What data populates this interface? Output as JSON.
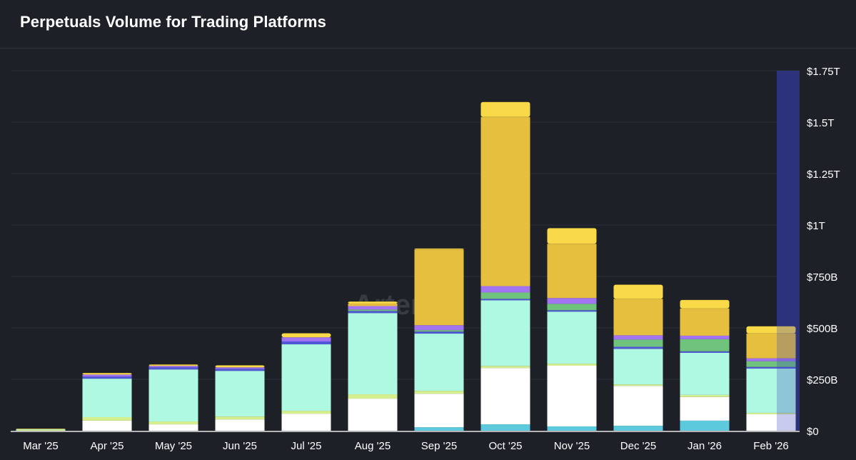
{
  "chart_data": {
    "type": "bar",
    "stacked": true,
    "title": "Perpetuals Volume for Trading Platforms",
    "watermark": "Artemis",
    "xlabel": "",
    "ylabel": "",
    "ylim": [
      0,
      1750
    ],
    "y_unit": "billions USD",
    "y_ticks": [
      0,
      250,
      500,
      750,
      1000,
      1250,
      1500,
      1750
    ],
    "y_tick_labels": [
      "$0",
      "$250B",
      "$500B",
      "$750B",
      "$1T",
      "$1.25T",
      "$1.5T",
      "$1.75T"
    ],
    "y_axis_position": "right",
    "grid": true,
    "legend": "none",
    "highlight_last_period": true,
    "categories": [
      "Mar '25",
      "Apr '25",
      "May '25",
      "Jun '25",
      "Jul '25",
      "Aug '25",
      "Sep '25",
      "Oct '25",
      "Nov '25",
      "Dec '25",
      "Jan '26",
      "Feb '26"
    ],
    "series": [
      {
        "color": "#5cc9dc",
        "values": [
          0,
          0,
          0,
          0,
          0,
          0,
          17,
          31,
          21,
          24,
          49,
          0
        ]
      },
      {
        "color": "#ffffff",
        "values": [
          0,
          49,
          31,
          55,
          83,
          156,
          163,
          274,
          295,
          194,
          115,
          80
        ]
      },
      {
        "color": "#d5ef8f",
        "values": [
          5,
          17,
          14,
          14,
          14,
          21,
          14,
          10,
          10,
          7,
          10,
          7
        ]
      },
      {
        "color": "#aff8e2",
        "values": [
          3,
          187,
          253,
          222,
          323,
          395,
          278,
          319,
          253,
          173,
          205,
          215
        ]
      },
      {
        "color": "#5058d8",
        "values": [
          0,
          10,
          10,
          10,
          14,
          10,
          10,
          7,
          7,
          10,
          7,
          8
        ]
      },
      {
        "color": "#6fc37c",
        "values": [
          0,
          0,
          0,
          0,
          0,
          7,
          7,
          31,
          31,
          35,
          59,
          28
        ]
      },
      {
        "color": "#a274f2",
        "values": [
          0,
          10,
          7,
          7,
          20,
          17,
          24,
          31,
          28,
          21,
          17,
          14
        ]
      },
      {
        "color": "#e7bf3f",
        "values": [
          0,
          0,
          0,
          0,
          0,
          12,
          368,
          822,
          264,
          177,
          132,
          121
        ]
      },
      {
        "color": "#f9d948",
        "values": [
          2,
          8,
          7,
          10,
          20,
          10,
          5,
          73,
          76,
          69,
          42,
          35
        ]
      }
    ]
  },
  "colors": {
    "background": "#1d2027",
    "grid": "#2c2f3a",
    "highlight": "#2a2f6e"
  }
}
